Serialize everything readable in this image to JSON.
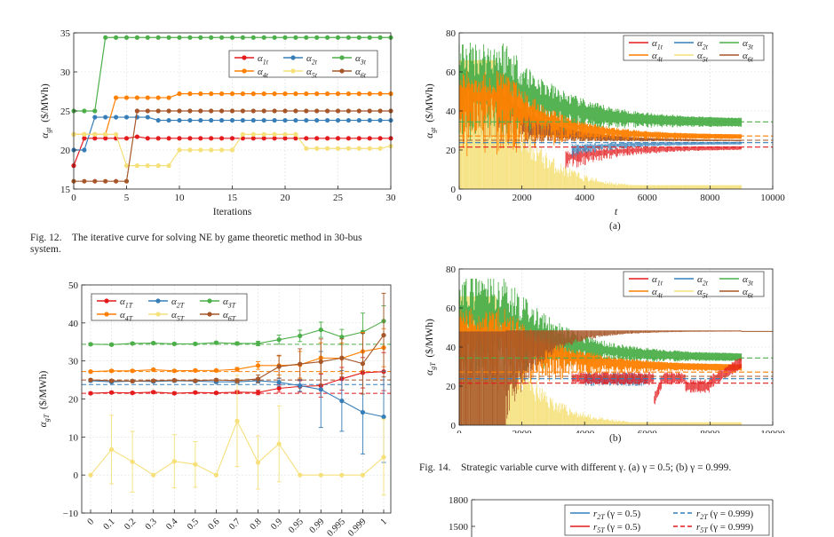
{
  "colors": {
    "a1": "#e41a1c",
    "a2": "#377eb8",
    "a3": "#4daf4a",
    "a4": "#ff7f00",
    "a5": "#f5e07a",
    "a6": "#a65628"
  },
  "captions": {
    "fig12": "Fig. 12. The iterative curve for solving NE by game theoretic method in 30-bus system.",
    "fig14": "Fig. 14. Strategic variable curve with different γ. (a) γ = 0.5; (b) γ = 0.999.",
    "sub_a": "(a)",
    "sub_b": "(b)"
  },
  "chart_data": [
    {
      "id": "fig12",
      "type": "line",
      "xlabel": "Iterations",
      "ylabel": "αgt ($/MWh)",
      "xlim": [
        0,
        30
      ],
      "ylim": [
        15,
        35
      ],
      "xticks": [
        0,
        5,
        10,
        15,
        20,
        25,
        30
      ],
      "yticks": [
        15,
        20,
        25,
        30,
        35
      ],
      "legend_position": "top-right",
      "x": [
        0,
        1,
        2,
        3,
        4,
        5,
        6,
        7,
        8,
        9,
        10,
        11,
        12,
        13,
        14,
        15,
        16,
        17,
        18,
        19,
        20,
        21,
        22,
        23,
        24,
        25,
        26,
        27,
        28,
        29,
        30
      ],
      "series": [
        {
          "name": "α1t",
          "color": "a1",
          "values": [
            18,
            21.5,
            21.5,
            21.5,
            21.5,
            21.5,
            21.7,
            21.5,
            21.5,
            21.5,
            21.5,
            21.5,
            21.5,
            21.5,
            21.5,
            21.5,
            21.5,
            21.5,
            21.5,
            21.5,
            21.5,
            21.5,
            21.5,
            21.5,
            21.5,
            21.5,
            21.5,
            21.5,
            21.5,
            21.5,
            21.5
          ]
        },
        {
          "name": "α2t",
          "color": "a2",
          "values": [
            20,
            20,
            24.2,
            24.2,
            24.2,
            24.2,
            24.2,
            24.2,
            23.8,
            23.8,
            23.8,
            23.8,
            23.8,
            23.8,
            23.8,
            23.8,
            23.8,
            23.8,
            23.8,
            23.8,
            23.8,
            23.8,
            23.8,
            23.8,
            23.8,
            23.8,
            23.8,
            23.8,
            23.8,
            23.8,
            23.8
          ]
        },
        {
          "name": "α3t",
          "color": "a3",
          "values": [
            25,
            25,
            25,
            34.4,
            34.4,
            34.4,
            34.4,
            34.4,
            34.4,
            34.4,
            34.4,
            34.4,
            34.4,
            34.4,
            34.4,
            34.4,
            34.4,
            34.4,
            34.4,
            34.4,
            34.4,
            34.4,
            34.4,
            34.4,
            34.4,
            34.4,
            34.4,
            34.4,
            34.4,
            34.4,
            34.4
          ]
        },
        {
          "name": "α4t",
          "color": "a4",
          "values": [
            22,
            22,
            22,
            22,
            26.7,
            26.7,
            26.7,
            26.7,
            26.7,
            26.7,
            27.2,
            27.2,
            27.2,
            27.2,
            27.2,
            27.2,
            27.2,
            27.2,
            27.2,
            27.2,
            27.2,
            27.2,
            27.2,
            27.2,
            27.2,
            27.2,
            27.2,
            27.2,
            27.2,
            27.2,
            27.2
          ]
        },
        {
          "name": "α5t",
          "color": "a5",
          "values": [
            22,
            22,
            22,
            22,
            22,
            18,
            18,
            18,
            18,
            18,
            20,
            20,
            20,
            20,
            20,
            20,
            22,
            22,
            22,
            22,
            22,
            22,
            20.2,
            20.2,
            20.2,
            20.2,
            20.2,
            20.2,
            20.2,
            20.2,
            20.5
          ]
        },
        {
          "name": "α6t",
          "color": "a6",
          "values": [
            16,
            16,
            16,
            16,
            16,
            16,
            25,
            25,
            25,
            25,
            25,
            25,
            25,
            25,
            25,
            25,
            25,
            25,
            25,
            25,
            25,
            25,
            25,
            25,
            25,
            25,
            25,
            25,
            25,
            25,
            25
          ]
        }
      ]
    },
    {
      "id": "fig13",
      "type": "line",
      "ylabel": "αgT ($/MWh)",
      "ylim": [
        -10,
        50
      ],
      "yticks": [
        -10,
        0,
        10,
        20,
        30,
        40,
        50
      ],
      "categories": [
        "0",
        "0.1",
        "0.2",
        "0.3",
        "0.4",
        "0.5",
        "0.6",
        "0.7",
        "0.8",
        "0.9",
        "0.95",
        "0.99",
        "0.995",
        "0.999",
        "1"
      ],
      "legend_position": "top-left",
      "reference_lines": [
        {
          "color": "a3",
          "value": 34.4
        },
        {
          "color": "a4",
          "value": 27.2
        },
        {
          "color": "a6",
          "value": 25
        },
        {
          "color": "a2",
          "value": 23.8
        },
        {
          "color": "a1",
          "value": 21.5
        }
      ],
      "series": [
        {
          "name": "α1T",
          "color": "a1",
          "values": [
            21.5,
            21.7,
            21.6,
            21.8,
            21.5,
            21.7,
            21.6,
            21.8,
            21.7,
            22.8,
            23.3,
            23.5,
            25.3,
            26.9,
            27.2
          ],
          "err": [
            0.3,
            0.3,
            0.3,
            0.3,
            0.3,
            0.3,
            0.3,
            0.4,
            0.6,
            1.0,
            1.5,
            3,
            3,
            4,
            5
          ]
        },
        {
          "name": "α2T",
          "color": "a2",
          "values": [
            24.8,
            24.5,
            24.7,
            24.6,
            24.8,
            24.7,
            24.5,
            24.5,
            24.8,
            24.4,
            23.5,
            22.5,
            19.5,
            16.5,
            15.3
          ],
          "err": [
            0.3,
            0.3,
            0.3,
            0.3,
            0.3,
            0.3,
            0.3,
            0.4,
            0.6,
            1.0,
            1.5,
            10,
            8,
            11,
            12
          ]
        },
        {
          "name": "α3T",
          "color": "a3",
          "values": [
            34.4,
            34.3,
            34.6,
            34.7,
            34.5,
            34.5,
            34.8,
            34.6,
            34.6,
            35.6,
            36.6,
            38.2,
            36.3,
            37.6,
            40.5
          ],
          "err": [
            0.3,
            0.3,
            0.3,
            0.3,
            0.3,
            0.3,
            0.3,
            0.4,
            0.6,
            1.2,
            1.5,
            2,
            2,
            5,
            4
          ]
        },
        {
          "name": "α4T",
          "color": "a4",
          "values": [
            27.2,
            27.4,
            27.4,
            27.7,
            27.4,
            27.5,
            27.5,
            27.8,
            28.8,
            28.8,
            29,
            30.8,
            30.7,
            32.5,
            33.5
          ],
          "err": [
            0.3,
            0.3,
            0.3,
            0.3,
            0.3,
            0.3,
            0.3,
            0.5,
            1.0,
            2.5,
            3.5,
            4,
            4,
            5,
            5
          ]
        },
        {
          "name": "α5T",
          "color": "a5",
          "values": [
            0,
            6.7,
            3.5,
            0,
            3.6,
            2.8,
            0,
            14.2,
            3.3,
            8.2,
            0,
            0,
            0,
            0,
            4.7
          ],
          "err": [
            0,
            9,
            8,
            0,
            7,
            6,
            0,
            12,
            7,
            10,
            0,
            0,
            0,
            0,
            10
          ]
        },
        {
          "name": "α6T",
          "color": "a6",
          "values": [
            25,
            24.8,
            24.7,
            24.8,
            24.9,
            24.8,
            25,
            24.8,
            25.3,
            28.5,
            29.2,
            29.8,
            30.8,
            29.3,
            36.8
          ],
          "err": [
            0.3,
            0.3,
            0.3,
            0.3,
            0.3,
            0.3,
            0.3,
            0.5,
            1,
            3,
            4,
            6,
            5,
            8,
            11
          ]
        }
      ]
    },
    {
      "id": "fig14a",
      "type": "line",
      "xlabel": "t",
      "ylabel": "αgt ($/MWh)",
      "xlim": [
        0,
        10000
      ],
      "ylim": [
        0,
        80
      ],
      "xticks": [
        0,
        2000,
        4000,
        6000,
        8000,
        10000
      ],
      "yticks": [
        0,
        20,
        40,
        60,
        80
      ],
      "legend_position": "top-right",
      "series_names": [
        "α1t",
        "α2t",
        "α3t",
        "α4t",
        "α5t",
        "α6t"
      ],
      "reference_lines": [
        {
          "color": "a3",
          "value": 34.4
        },
        {
          "color": "a4",
          "value": 27.2
        },
        {
          "color": "a6",
          "value": 25
        },
        {
          "color": "a2",
          "value": 23.8
        },
        {
          "color": "a1",
          "value": 21.5
        }
      ]
    },
    {
      "id": "fig14b",
      "type": "line",
      "xlabel": "t",
      "ylabel": "αgT ($/MWh)",
      "xlim": [
        0,
        10000
      ],
      "ylim": [
        0,
        80
      ],
      "xticks": [
        0,
        2000,
        4000,
        6000,
        8000,
        10000
      ],
      "yticks": [
        0,
        20,
        40,
        60,
        80
      ],
      "legend_position": "top-right",
      "series_names": [
        "α1t",
        "α2t",
        "α3t",
        "α4t",
        "α5t",
        "α6t"
      ],
      "reference_lines": [
        {
          "color": "a3",
          "value": 34.4
        },
        {
          "color": "a4",
          "value": 27.2
        },
        {
          "color": "a6",
          "value": 25
        },
        {
          "color": "a2",
          "value": 23.8
        },
        {
          "color": "a1",
          "value": 21.5
        }
      ]
    },
    {
      "id": "fig15",
      "type": "line",
      "yticks": [
        1500,
        1800
      ],
      "legend_position": "top-right",
      "legend": [
        {
          "name": "r2T (γ = 0.5)",
          "color": "a2",
          "style": "solid"
        },
        {
          "name": "r2T (γ = 0.999)",
          "color": "a2",
          "style": "dashed"
        },
        {
          "name": "r5T (γ = 0.5)",
          "color": "a1",
          "style": "solid"
        },
        {
          "name": "r5T (γ = 0.999)",
          "color": "a1",
          "style": "dashed"
        }
      ]
    }
  ]
}
